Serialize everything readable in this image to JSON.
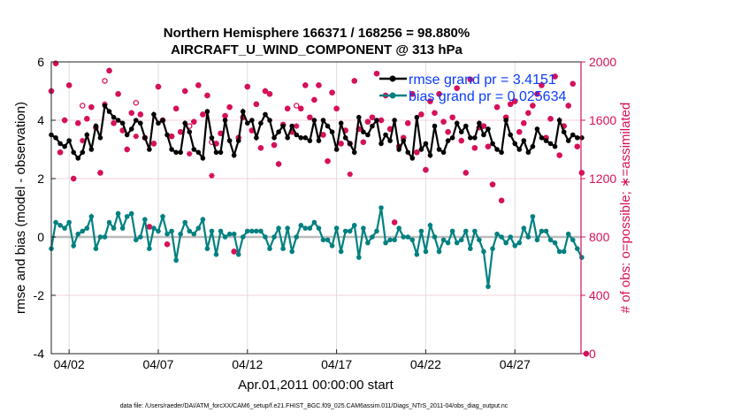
{
  "chart_data": {
    "type": "line",
    "title": [
      "Northern Hemisphere 166371 / 168256 = 98.880%",
      "AIRCRAFT_U_WIND_COMPONENT @ 313 hPa"
    ],
    "xlabel": "Apr.01,2011 00:00:00 start",
    "ylabel": "rmse and bias (model - observation)",
    "ylabel_right": "# of obs: o=possible; ∗=assimilated",
    "footer": "data file: /Users/raeder/DAI/ATM_forcXX/CAM6_setup/f.e21.FHIST_BGC.f09_025.CAM6assim.011/Diags_NTrS_2011-04/obs_diag_output.nc",
    "x_start": "2011-04-01T00:00:00Z",
    "x_end": "2011-04-30T17:00:00Z",
    "interval_hours": 6,
    "x_ticks": [
      {
        "date": "2011-04-02T00:00:00Z",
        "label": "04/02"
      },
      {
        "date": "2011-04-07T00:00:00Z",
        "label": "04/07"
      },
      {
        "date": "2011-04-12T00:00:00Z",
        "label": "04/12"
      },
      {
        "date": "2011-04-17T00:00:00Z",
        "label": "04/17"
      },
      {
        "date": "2011-04-22T00:00:00Z",
        "label": "04/22"
      },
      {
        "date": "2011-04-27T00:00:00Z",
        "label": "04/27"
      }
    ],
    "ylim": [
      -4,
      6
    ],
    "y_ticks": [
      -4,
      -2,
      0,
      2,
      4,
      6
    ],
    "ylim_right": [
      0,
      2000
    ],
    "y_ticks_right": [
      0,
      400,
      800,
      1200,
      1600,
      2000
    ],
    "grid": true,
    "legend_position": "top-right",
    "colors": {
      "rmse": "#000000",
      "bias": "#008080",
      "obs": "#D6105A",
      "legend_text": "#0A3CFF",
      "zero_line": "#BBBBBB"
    },
    "series": [
      {
        "name": "rmse grand pr = 3.4151",
        "axis": "left",
        "values": [
          3.5,
          3.4,
          3.2,
          3.1,
          3.3,
          2.9,
          2.7,
          2.9,
          3.5,
          3.0,
          3.8,
          3.4,
          4.5,
          4.3,
          4.1,
          4.0,
          3.9,
          3.5,
          3.7,
          4.0,
          3.9,
          3.4,
          3.0,
          4.2,
          3.9,
          4.0,
          3.5,
          3.0,
          2.9,
          2.9,
          3.9,
          3.6,
          3.0,
          2.9,
          2.7,
          4.3,
          3.4,
          2.9,
          2.9,
          4.0,
          3.3,
          2.8,
          3.3,
          4.3,
          3.9,
          4.0,
          3.4,
          3.9,
          4.2,
          4.0,
          3.4,
          3.6,
          3.8,
          3.4,
          3.8,
          3.5,
          3.4,
          3.4,
          3.3,
          4.0,
          3.3,
          4.0,
          3.8,
          3.6,
          3.0,
          3.9,
          3.4,
          3.2,
          2.9,
          4.1,
          3.6,
          3.5,
          3.8,
          4.0,
          3.2,
          3.5,
          3.3,
          4.0,
          3.0,
          3.3,
          2.9,
          2.7,
          4.1,
          3.0,
          3.2,
          2.8,
          3.8,
          3.0,
          2.9,
          3.3,
          3.4,
          3.9,
          3.6,
          3.8,
          3.4,
          3.4,
          3.9,
          3.5,
          3.7,
          3.2,
          3.0,
          2.9,
          4.0,
          3.5,
          3.2,
          3.0,
          3.3,
          2.9,
          3.1,
          3.7,
          3.4,
          3.3,
          3.2,
          3.1,
          4.0,
          3.6,
          3.3,
          3.5,
          3.4,
          3.4
        ]
      },
      {
        "name": "bias grand pr = 0.025634",
        "axis": "left",
        "values": [
          -0.4,
          0.5,
          0.4,
          0.3,
          0.5,
          -0.3,
          0.1,
          0.2,
          0.3,
          0.7,
          -0.4,
          0.0,
          0.0,
          0.5,
          0.3,
          0.8,
          0.3,
          0.7,
          0.8,
          -0.1,
          0.0,
          0.6,
          -0.4,
          0.3,
          0.2,
          0.7,
          0.1,
          0.2,
          -0.8,
          0.1,
          0.5,
          0.2,
          0.1,
          0.3,
          0.6,
          -0.4,
          0.2,
          -0.6,
          0.2,
          0.0,
          0.1,
          0.1,
          -0.6,
          0.0,
          0.2,
          0.2,
          0.2,
          0.2,
          0.0,
          -0.4,
          0.0,
          0.3,
          -0.4,
          0.3,
          -0.5,
          0.0,
          0.4,
          0.3,
          0.3,
          0.5,
          0.3,
          -0.1,
          -0.1,
          -0.3,
          0.3,
          -0.5,
          0.2,
          0.2,
          0.4,
          -0.7,
          0.3,
          -0.2,
          0.0,
          0.2,
          1.0,
          -0.2,
          -0.1,
          -0.1,
          0.3,
          0.0,
          0.0,
          -0.1,
          -0.6,
          0.2,
          -0.5,
          0.4,
          0.0,
          -0.5,
          -0.1,
          -0.2,
          0.2,
          -0.2,
          -0.1,
          0.2,
          -0.4,
          0.2,
          -0.1,
          -0.5,
          -1.7,
          -0.4,
          0.1,
          0.0,
          -0.2,
          0.0,
          -0.3,
          -0.2,
          0.3,
          0.0,
          0.7,
          -0.1,
          0.2,
          0.2,
          -0.1,
          -0.2,
          -0.5,
          -0.5,
          0.1,
          -0.1,
          -0.4,
          -0.7
        ]
      },
      {
        "axis": "right",
        "marker": "asterisk",
        "role": "assimilated",
        "values": [
          1800,
          1990,
          1380,
          1600,
          1840,
          1200,
          1580,
          1460,
          1610,
          1690,
          1550,
          1240,
          1710,
          1940,
          1580,
          1780,
          1530,
          1400,
          1650,
          1490,
          1640,
          1480,
          870,
          1440,
          1830,
          1600,
          750,
          1490,
          1680,
          1520,
          1800,
          1370,
          1590,
          1840,
          1640,
          1770,
          1220,
          1440,
          1510,
          1630,
          1690,
          700,
          1480,
          1620,
          1830,
          1530,
          1710,
          1410,
          1800,
          1780,
          1430,
          1300,
          1570,
          1680,
          1520,
          1560,
          1680,
          1840,
          1620,
          1740,
          1840,
          1500,
          1320,
          1790,
          1680,
          1440,
          1530,
          1230,
          1870,
          1540,
          1450,
          1590,
          1620,
          1920,
          1600,
          1770,
          1540,
          900,
          1420,
          1480,
          1580,
          1780,
          1380,
          1640,
          1260,
          1730,
          1650,
          1780,
          1590,
          1520,
          1620,
          1820,
          1460,
          1240,
          1880,
          1410,
          1550,
          1560,
          1420,
          1160,
          1690,
          1050,
          1620,
          1710,
          1730,
          1520,
          1580,
          1650,
          1700,
          1780,
          1840,
          1480,
          1610,
          1900,
          1360,
          1560,
          1700,
          1850,
          1420,
          1240,
          0
        ]
      },
      {
        "axis": "right",
        "marker": "circle",
        "role": "possible",
        "values": [
          1800,
          1990,
          1380,
          1600,
          1840,
          1200,
          1580,
          1700,
          1610,
          1690,
          1550,
          1240,
          1870,
          1940,
          1580,
          1780,
          1530,
          1400,
          1650,
          1720,
          1640,
          1480,
          870,
          1440,
          1830,
          1600,
          750,
          1490,
          1680,
          1520,
          1800,
          1560,
          1590,
          1840,
          1640,
          1770,
          1450,
          1440,
          1510,
          1630,
          1690,
          700,
          1480,
          1620,
          1830,
          1530,
          1710,
          1410,
          1800,
          1780,
          1430,
          1300,
          1570,
          1680,
          1520,
          1700,
          1680,
          1840,
          1620,
          1740,
          1840,
          1500,
          1320,
          1790,
          1680,
          1440,
          1530,
          1440,
          1870,
          1540,
          1450,
          1590,
          1620,
          1920,
          1600,
          1770,
          1540,
          900,
          1420,
          1480,
          1580,
          1780,
          1380,
          1640,
          1260,
          1730,
          1650,
          1780,
          1590,
          1520,
          1620,
          1820,
          1460,
          1240,
          1880,
          1410,
          1550,
          1560,
          1420,
          1160,
          1690,
          1050,
          1620,
          1710,
          1730,
          1520,
          1580,
          1650,
          1700,
          1780,
          1840,
          1480,
          1610,
          1900,
          1360,
          1560,
          1700,
          1850,
          1420,
          1240,
          0
        ]
      }
    ]
  }
}
